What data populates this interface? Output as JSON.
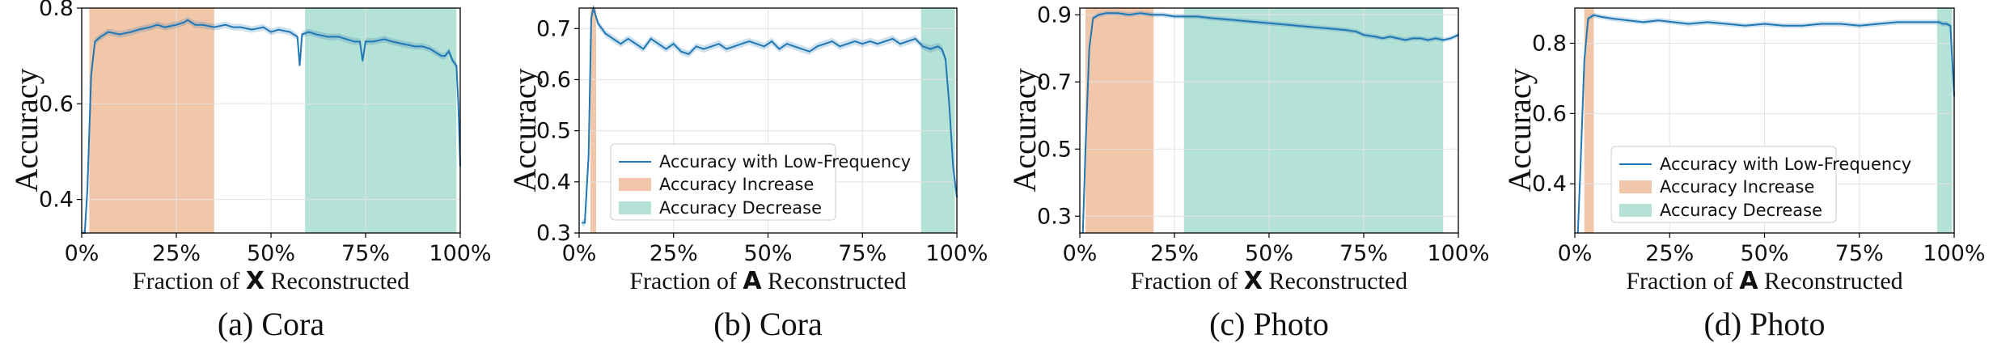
{
  "colors": {
    "line": "#1f77b4",
    "band": "#1f77b4",
    "increase": "#f2c6a8",
    "decrease": "#b5e2d6",
    "grid": "#e3e3e3"
  },
  "chart_data": [
    {
      "type": "line",
      "caption": "(a) Cora",
      "xlabel_prefix": "Fraction of ",
      "xlabel_symbol": "X",
      "xlabel_suffix": " Reconstructed",
      "ylabel": "Accuracy",
      "xlim": [
        0,
        100
      ],
      "ylim": [
        0.33,
        0.8
      ],
      "xticks": [
        0,
        25,
        50,
        75,
        100
      ],
      "xtick_labels": [
        "0%",
        "25%",
        "50%",
        "75%",
        "100%"
      ],
      "yticks": [
        0.4,
        0.6,
        0.8
      ],
      "ytick_labels": [
        "0.4",
        "0.6",
        "0.8"
      ],
      "grid": true,
      "legend": null,
      "series": [
        {
          "x": [
            0,
            0.8,
            1.5,
            2.5,
            3.5,
            5,
            7,
            10,
            13,
            15,
            18,
            20,
            22,
            25,
            27,
            28,
            30,
            32,
            35,
            38,
            40,
            42,
            45,
            48,
            50,
            52,
            55,
            57,
            57.6,
            58.2,
            60,
            62,
            65,
            68,
            70,
            72,
            73.5,
            74.2,
            75,
            77,
            80,
            82,
            85,
            88,
            90,
            92,
            94,
            95,
            96,
            97,
            98,
            99,
            99.5,
            100
          ],
          "y": [
            0.33,
            0.33,
            0.42,
            0.66,
            0.73,
            0.74,
            0.75,
            0.745,
            0.75,
            0.755,
            0.76,
            0.765,
            0.76,
            0.765,
            0.77,
            0.775,
            0.765,
            0.765,
            0.76,
            0.765,
            0.76,
            0.76,
            0.755,
            0.76,
            0.75,
            0.755,
            0.75,
            0.74,
            0.68,
            0.745,
            0.75,
            0.745,
            0.74,
            0.74,
            0.735,
            0.73,
            0.73,
            0.69,
            0.73,
            0.73,
            0.735,
            0.73,
            0.725,
            0.72,
            0.72,
            0.715,
            0.705,
            0.7,
            0.7,
            0.71,
            0.69,
            0.68,
            0.6,
            0.47
          ]
        }
      ],
      "shaded_regions": [
        {
          "name": "Accuracy Increase",
          "start": 2,
          "end": 35
        },
        {
          "name": "Accuracy Decrease",
          "start": 59,
          "end": 99
        }
      ]
    },
    {
      "type": "line",
      "caption": "(b) Cora",
      "xlabel_prefix": "Fraction of ",
      "xlabel_symbol": "A",
      "xlabel_suffix": " Reconstructed",
      "ylabel": "Accuracy",
      "xlim": [
        0,
        100
      ],
      "ylim": [
        0.3,
        0.74
      ],
      "xticks": [
        0,
        25,
        50,
        75,
        100
      ],
      "xtick_labels": [
        "0%",
        "25%",
        "50%",
        "75%",
        "100%"
      ],
      "yticks": [
        0.3,
        0.4,
        0.5,
        0.6,
        0.7
      ],
      "ytick_labels": [
        "0.3",
        "0.4",
        "0.5",
        "0.6",
        "0.7"
      ],
      "grid": true,
      "legend": {
        "position": "lower-left",
        "line_label": "Accuracy with Low-Frequency",
        "increase_label": "Accuracy Increase",
        "decrease_label": "Accuracy Decrease"
      },
      "series": [
        {
          "name": "Accuracy with Low-Frequency",
          "x": [
            0.8,
            1.5,
            2.5,
            3.2,
            3.8,
            5,
            7,
            9,
            11,
            13,
            15,
            17,
            19,
            21,
            23,
            25,
            27,
            29,
            31,
            33,
            35,
            37,
            39,
            41,
            43,
            45,
            47,
            49,
            51,
            53,
            55,
            57,
            59,
            61,
            63,
            65,
            67,
            69,
            71,
            73,
            75,
            77,
            79,
            81,
            83,
            85,
            87,
            89,
            91,
            93,
            95,
            96,
            97,
            98,
            99,
            100
          ],
          "y": [
            0.32,
            0.32,
            0.45,
            0.72,
            0.74,
            0.71,
            0.69,
            0.68,
            0.67,
            0.68,
            0.67,
            0.66,
            0.68,
            0.67,
            0.66,
            0.67,
            0.655,
            0.65,
            0.665,
            0.66,
            0.665,
            0.67,
            0.66,
            0.665,
            0.67,
            0.675,
            0.67,
            0.665,
            0.675,
            0.66,
            0.67,
            0.665,
            0.66,
            0.655,
            0.665,
            0.67,
            0.675,
            0.665,
            0.67,
            0.675,
            0.67,
            0.675,
            0.67,
            0.675,
            0.68,
            0.67,
            0.675,
            0.68,
            0.665,
            0.66,
            0.665,
            0.66,
            0.64,
            0.55,
            0.43,
            0.37
          ]
        }
      ],
      "shaded_regions": [
        {
          "name": "Accuracy Increase",
          "start": 3,
          "end": 4.5
        },
        {
          "name": "Accuracy Decrease",
          "start": 90.5,
          "end": 99.5
        }
      ]
    },
    {
      "type": "line",
      "caption": "(c) Photo",
      "xlabel_prefix": "Fraction of ",
      "xlabel_symbol": "X",
      "xlabel_suffix": " Reconstructed",
      "ylabel": "Accuracy",
      "xlim": [
        0,
        100
      ],
      "ylim": [
        0.25,
        0.92
      ],
      "xticks": [
        0,
        25,
        50,
        75,
        100
      ],
      "xtick_labels": [
        "0%",
        "25%",
        "50%",
        "75%",
        "100%"
      ],
      "yticks": [
        0.3,
        0.5,
        0.7,
        0.9
      ],
      "ytick_labels": [
        "0.3",
        "0.5",
        "0.7",
        "0.9"
      ],
      "grid": true,
      "legend": null,
      "series": [
        {
          "x": [
            0.8,
            1.5,
            2.5,
            3.5,
            5,
            7,
            10,
            13,
            16,
            19,
            22,
            25,
            28,
            31,
            35,
            40,
            45,
            50,
            55,
            60,
            65,
            70,
            73,
            75,
            78,
            80,
            82,
            84,
            86,
            88,
            90,
            92,
            94,
            96,
            98,
            100
          ],
          "y": [
            0.25,
            0.5,
            0.8,
            0.89,
            0.9,
            0.905,
            0.905,
            0.9,
            0.905,
            0.9,
            0.9,
            0.895,
            0.895,
            0.895,
            0.89,
            0.885,
            0.88,
            0.875,
            0.87,
            0.865,
            0.86,
            0.855,
            0.85,
            0.84,
            0.835,
            0.83,
            0.835,
            0.83,
            0.825,
            0.83,
            0.83,
            0.825,
            0.83,
            0.825,
            0.83,
            0.84
          ]
        }
      ],
      "shaded_regions": [
        {
          "name": "Accuracy Increase",
          "start": 1.5,
          "end": 19.5
        },
        {
          "name": "Accuracy Decrease",
          "start": 27.5,
          "end": 96
        }
      ]
    },
    {
      "type": "line",
      "caption": "(d) Photo",
      "xlabel_prefix": "Fraction of ",
      "xlabel_symbol": "A",
      "xlabel_suffix": " Reconstructed",
      "ylabel": "Accuracy",
      "xlim": [
        0,
        100
      ],
      "ylim": [
        0.26,
        0.9
      ],
      "xticks": [
        0,
        25,
        50,
        75,
        100
      ],
      "xtick_labels": [
        "0%",
        "25%",
        "50%",
        "75%",
        "100%"
      ],
      "yticks": [
        0.4,
        0.6,
        0.8
      ],
      "ytick_labels": [
        "0.4",
        "0.6",
        "0.8"
      ],
      "grid": true,
      "legend": {
        "position": "lower-left",
        "line_label": "Accuracy with Low-Frequency",
        "increase_label": "Accuracy Increase",
        "decrease_label": "Accuracy Decrease"
      },
      "series": [
        {
          "name": "Accuracy with Low-Frequency",
          "x": [
            0.8,
            1.5,
            2.5,
            3.5,
            5,
            7,
            10,
            14,
            18,
            22,
            26,
            30,
            35,
            40,
            45,
            50,
            55,
            60,
            65,
            70,
            75,
            80,
            85,
            90,
            94,
            96,
            97,
            98,
            99,
            100
          ],
          "y": [
            0.26,
            0.45,
            0.75,
            0.87,
            0.88,
            0.875,
            0.87,
            0.865,
            0.86,
            0.865,
            0.86,
            0.855,
            0.86,
            0.855,
            0.85,
            0.855,
            0.85,
            0.85,
            0.855,
            0.855,
            0.85,
            0.855,
            0.86,
            0.86,
            0.86,
            0.86,
            0.855,
            0.855,
            0.85,
            0.65
          ]
        }
      ],
      "shaded_regions": [
        {
          "name": "Accuracy Increase",
          "start": 2.5,
          "end": 5
        },
        {
          "name": "Accuracy Decrease",
          "start": 95.5,
          "end": 99.5
        }
      ]
    }
  ]
}
